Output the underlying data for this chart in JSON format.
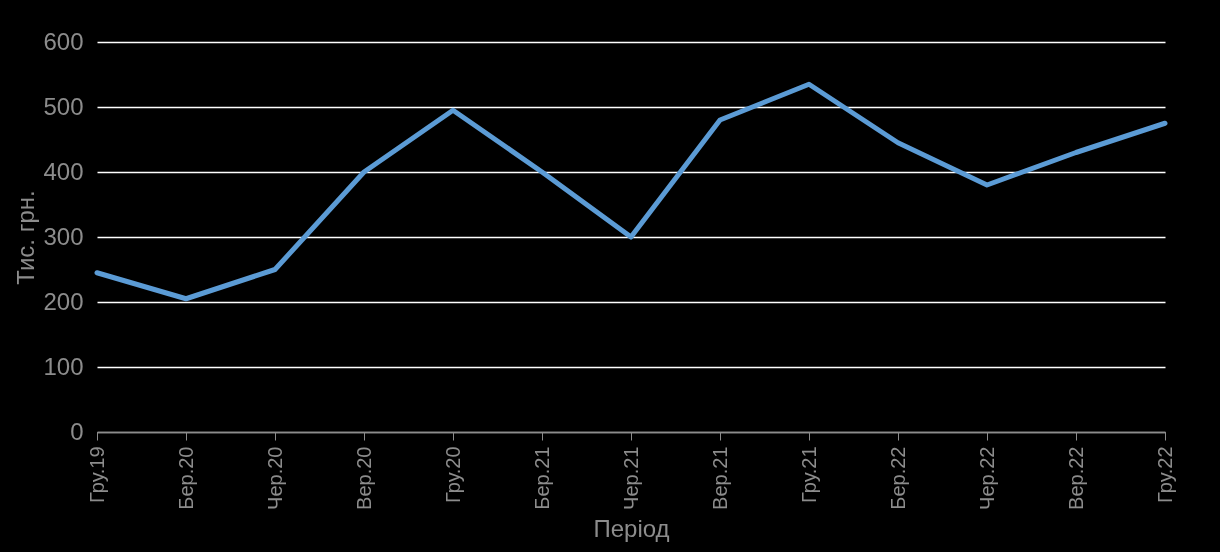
{
  "chart_data": {
    "type": "line",
    "xlabel": "Період",
    "ylabel": "Тис. грн.",
    "categories": [
      "Гру.19",
      "Бер.20",
      "Чер.20",
      "Вер.20",
      "Гру.20",
      "Бер.21",
      "Чер.21",
      "Вер.21",
      "Гру.21",
      "Бер.22",
      "Чер.22",
      "Вер.22",
      "Гру.22"
    ],
    "series": [
      {
        "color": "#5b9bd5",
        "values": [
          245,
          205,
          250,
          400,
          495,
          400,
          300,
          480,
          535,
          445,
          380,
          430,
          475
        ]
      }
    ],
    "ylim": [
      0,
      600
    ],
    "yticks": [
      0,
      100,
      200,
      300,
      400,
      500,
      600
    ],
    "grid": "y",
    "legend": false,
    "marker": "none",
    "line_style": "solid"
  }
}
